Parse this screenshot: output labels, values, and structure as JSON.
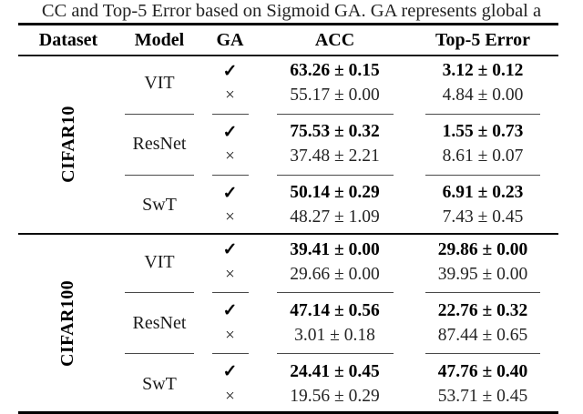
{
  "caption": "CC and Top-5 Error based on Sigmoid GA. GA represents global a",
  "table": {
    "headers": [
      "Dataset",
      "Model",
      "GA",
      "ACC",
      "Top-5 Error"
    ],
    "sections": [
      {
        "dataset": "CIFAR10",
        "models": [
          {
            "name": "VIT",
            "rows": [
              {
                "ga": "✓",
                "acc": "63.26 ± 0.15",
                "top5": "3.12 ± 0.12"
              },
              {
                "ga": "×",
                "acc": "55.17 ± 0.00",
                "top5": "4.84 ± 0.00"
              }
            ]
          },
          {
            "name": "ResNet",
            "rows": [
              {
                "ga": "✓",
                "acc": "75.53 ± 0.32",
                "top5": "1.55 ± 0.73"
              },
              {
                "ga": "×",
                "acc": "37.48 ± 2.21",
                "top5": "8.61 ± 0.07"
              }
            ]
          },
          {
            "name": "SwT",
            "rows": [
              {
                "ga": "✓",
                "acc": "50.14 ± 0.29",
                "top5": "6.91 ± 0.23"
              },
              {
                "ga": "×",
                "acc": "48.27 ± 1.09",
                "top5": "7.43 ± 0.45"
              }
            ]
          }
        ]
      },
      {
        "dataset": "CIFAR100",
        "models": [
          {
            "name": "VIT",
            "rows": [
              {
                "ga": "✓",
                "acc": "39.41 ± 0.00",
                "top5": "29.86 ± 0.00"
              },
              {
                "ga": "×",
                "acc": "29.66 ± 0.00",
                "top5": "39.95 ± 0.00"
              }
            ]
          },
          {
            "name": "ResNet",
            "rows": [
              {
                "ga": "✓",
                "acc": "47.14 ± 0.56",
                "top5": "22.76 ± 0.32"
              },
              {
                "ga": "×",
                "acc": "3.01 ± 0.18",
                "top5": "87.44 ± 0.65"
              }
            ]
          },
          {
            "name": "SwT",
            "rows": [
              {
                "ga": "✓",
                "acc": "24.41 ± 0.45",
                "top5": "47.76 ± 0.40"
              },
              {
                "ga": "×",
                "acc": "19.56 ± 0.29",
                "top5": "53.71 ± 0.45"
              }
            ]
          }
        ]
      }
    ]
  }
}
